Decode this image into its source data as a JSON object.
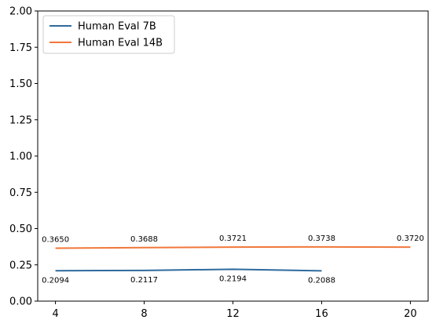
{
  "chart_data": {
    "type": "line",
    "title": "",
    "xlabel": "",
    "ylabel": "",
    "x": [
      4,
      8,
      12,
      16,
      20
    ],
    "xticks": [
      "4",
      "8",
      "12",
      "16",
      "20"
    ],
    "yticks": [
      "0.00",
      "0.25",
      "0.50",
      "0.75",
      "1.00",
      "1.25",
      "1.50",
      "1.75",
      "2.00"
    ],
    "xlim": [
      3.2,
      20.8
    ],
    "ylim": [
      0,
      2
    ],
    "grid": false,
    "legend_position": "top-left",
    "series": [
      {
        "name": "Human Eval 7B",
        "color": "#2e6a9e",
        "x": [
          4,
          8,
          12,
          16
        ],
        "values": [
          0.2094,
          0.2117,
          0.2194,
          0.2088
        ],
        "labels": [
          "0.2094",
          "0.2117",
          "0.2194",
          "0.2088"
        ],
        "label_side": "below"
      },
      {
        "name": "Human Eval 14B",
        "color": "#f0773a",
        "x": [
          4,
          8,
          12,
          16,
          20
        ],
        "values": [
          0.365,
          0.3688,
          0.3721,
          0.3738,
          0.372
        ],
        "labels": [
          "0.3650",
          "0.3688",
          "0.3721",
          "0.3738",
          "0.3720"
        ],
        "label_side": "above"
      }
    ]
  }
}
